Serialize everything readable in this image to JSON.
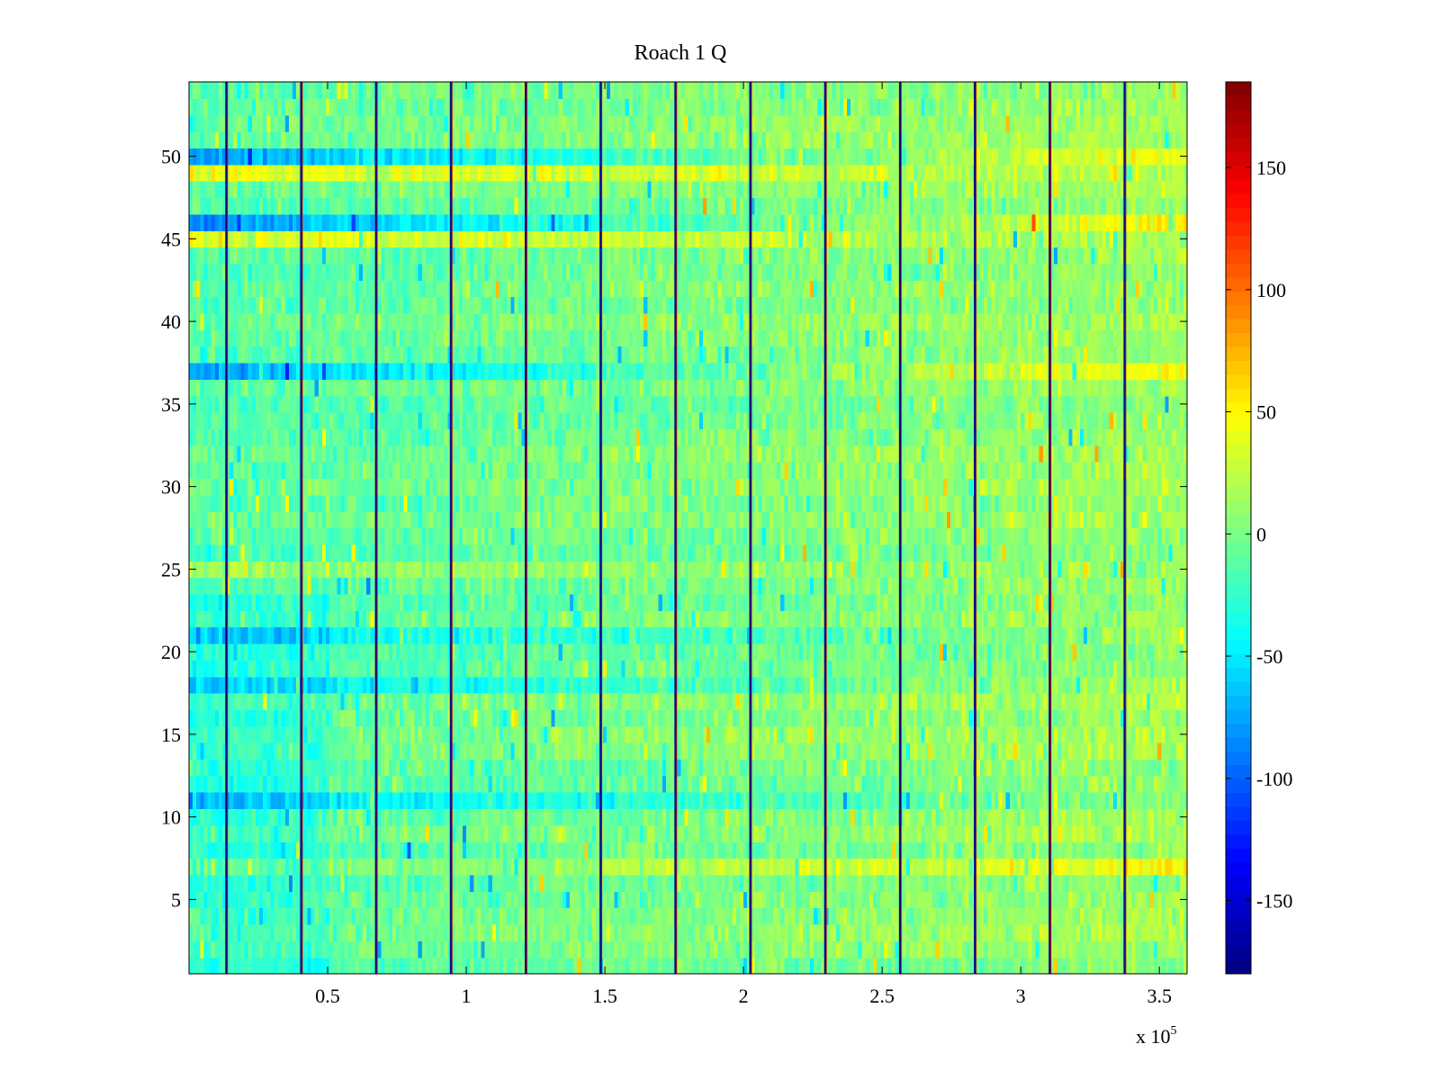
{
  "chart_data": {
    "type": "heatmap",
    "title": "Roach 1 Q",
    "xlabel": "",
    "ylabel": "",
    "x_range": [
      0,
      360000
    ],
    "y_range": [
      0.5,
      54.5
    ],
    "rows": 54,
    "x_ticks": [
      {
        "value": 50000,
        "label": "0.5"
      },
      {
        "value": 100000,
        "label": "1"
      },
      {
        "value": 150000,
        "label": "1.5"
      },
      {
        "value": 200000,
        "label": "2"
      },
      {
        "value": 250000,
        "label": "2.5"
      },
      {
        "value": 300000,
        "label": "3"
      },
      {
        "value": 350000,
        "label": "3.5"
      }
    ],
    "x_exponent": {
      "base": "x 10",
      "power": "5"
    },
    "y_ticks": [
      {
        "value": 5,
        "label": "5"
      },
      {
        "value": 10,
        "label": "10"
      },
      {
        "value": 15,
        "label": "15"
      },
      {
        "value": 20,
        "label": "20"
      },
      {
        "value": 25,
        "label": "25"
      },
      {
        "value": 30,
        "label": "30"
      },
      {
        "value": 35,
        "label": "35"
      },
      {
        "value": 40,
        "label": "40"
      },
      {
        "value": 45,
        "label": "45"
      },
      {
        "value": 50,
        "label": "50"
      }
    ],
    "colorbar": {
      "colormap": "jet",
      "range": [
        -180,
        185
      ],
      "ticks": [
        {
          "value": 150,
          "label": "150"
        },
        {
          "value": 100,
          "label": "100"
        },
        {
          "value": 50,
          "label": "50"
        },
        {
          "value": 0,
          "label": "0"
        },
        {
          "value": -50,
          "label": "-50"
        },
        {
          "value": -100,
          "label": "-100"
        },
        {
          "value": -150,
          "label": "-150"
        }
      ]
    },
    "vertical_lines_x": [
      13500,
      40500,
      67500,
      94500,
      121500,
      148500,
      175500,
      202500,
      229500,
      256500,
      283500,
      310500,
      337500
    ],
    "row_biases": [
      {
        "row": 50,
        "left": -70,
        "right": 28
      },
      {
        "row": 49,
        "left": 55,
        "right": 5
      },
      {
        "row": 46,
        "left": -70,
        "right": 40
      },
      {
        "row": 45,
        "left": 45,
        "right": -5
      },
      {
        "row": 37,
        "left": -65,
        "right": 35
      },
      {
        "row": 21,
        "left": -35,
        "right": 0
      },
      {
        "row": 18,
        "left": -45,
        "right": 0
      },
      {
        "row": 11,
        "left": -40,
        "right": 0
      },
      {
        "row": 25,
        "left": 25,
        "right": 0
      },
      {
        "row": 7,
        "left": 0,
        "right": 25
      }
    ]
  }
}
